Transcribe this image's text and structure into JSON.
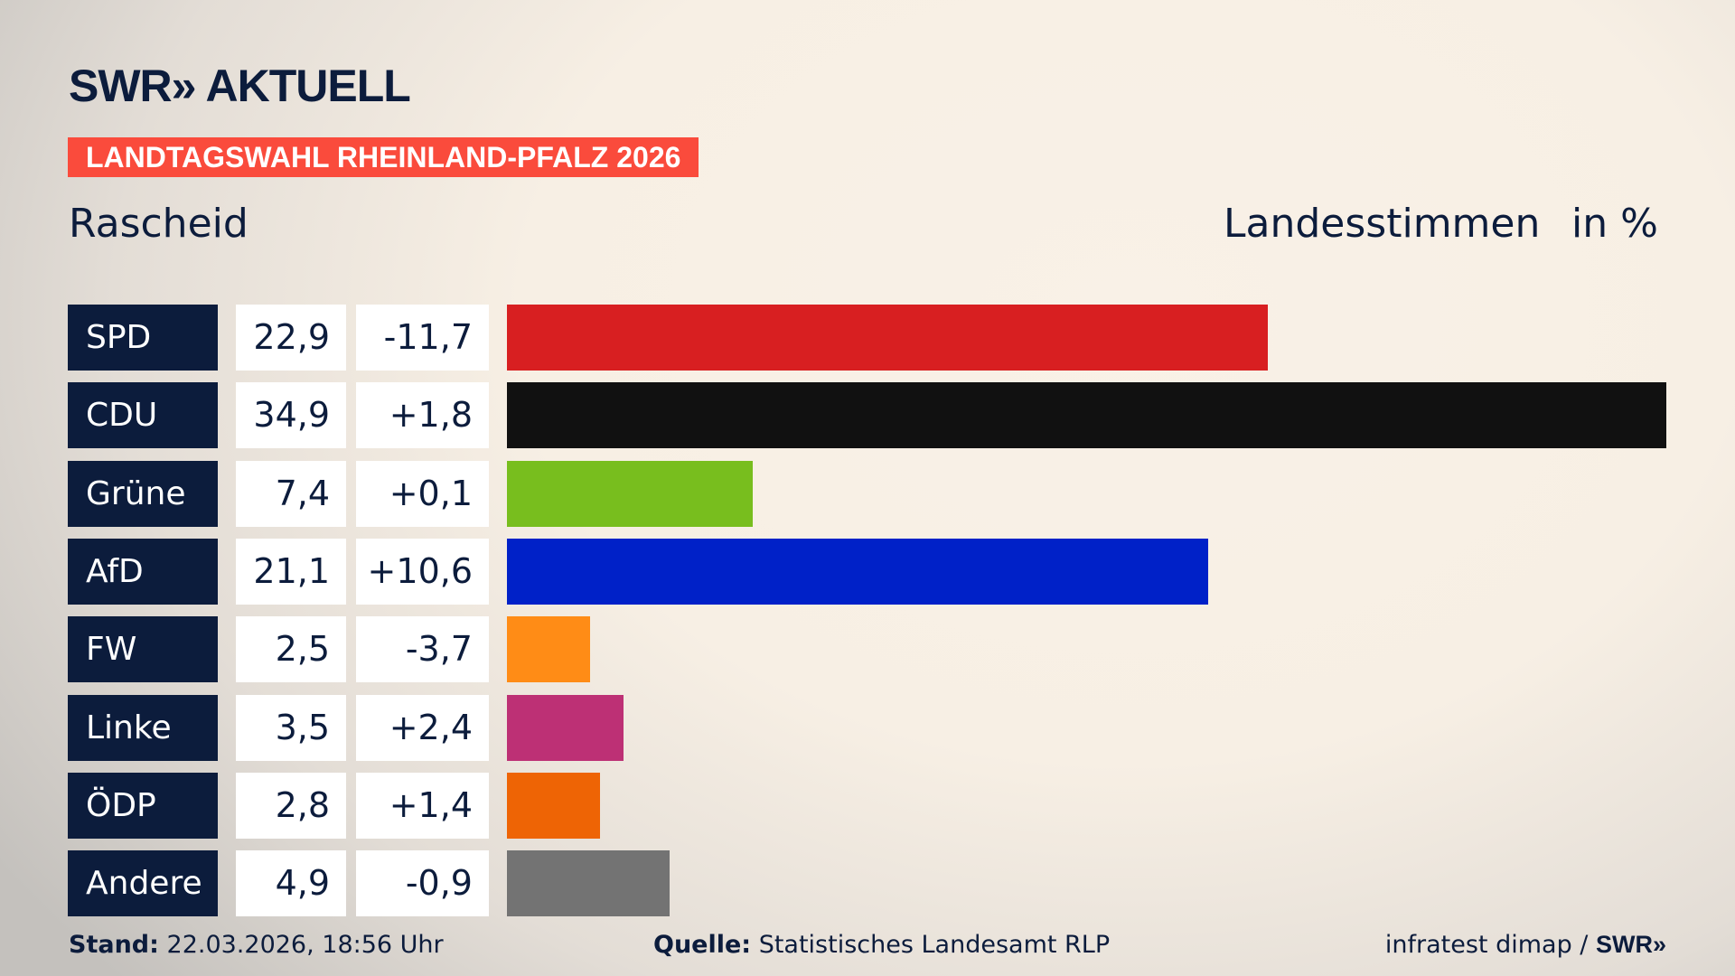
{
  "header": {
    "logo": "SWR» AKTUELL",
    "banner": "LANDTAGSWAHL RHEINLAND-PFALZ 2026",
    "place": "Rascheid",
    "measure": "Landesstimmen",
    "unit": "in %"
  },
  "colors": {
    "navy": "#0c1c3c",
    "banner": "#fa4b3c"
  },
  "chart_data": {
    "type": "bar",
    "orientation": "horizontal",
    "categories": [
      "SPD",
      "CDU",
      "Grüne",
      "AfD",
      "FW",
      "Linke",
      "ÖDP",
      "Andere"
    ],
    "values": [
      22.9,
      34.9,
      7.4,
      21.1,
      2.5,
      3.5,
      2.8,
      4.9
    ],
    "value_labels": [
      "22,9",
      "34,9",
      "7,4",
      "21,1",
      "2,5",
      "3,5",
      "2,8",
      "4,9"
    ],
    "change_labels": [
      "-11,7",
      "+1,8",
      "+0,1",
      "+10,6",
      "-3,7",
      "+2,4",
      "+1,4",
      "-0,9"
    ],
    "colors": [
      "#d81f21",
      "#111111",
      "#78be1e",
      "#0021c8",
      "#ff8c16",
      "#bd3075",
      "#ee6405",
      "#737373"
    ],
    "xlim": [
      0,
      34.9
    ]
  },
  "footer": {
    "stand_label": "Stand:",
    "stand": "22.03.2026, 18:56 Uhr",
    "source_label": "Quelle:",
    "source": "Statistisches Landesamt RLP",
    "credit": "infratest dimap / ",
    "credit_logo": "SWR»"
  }
}
